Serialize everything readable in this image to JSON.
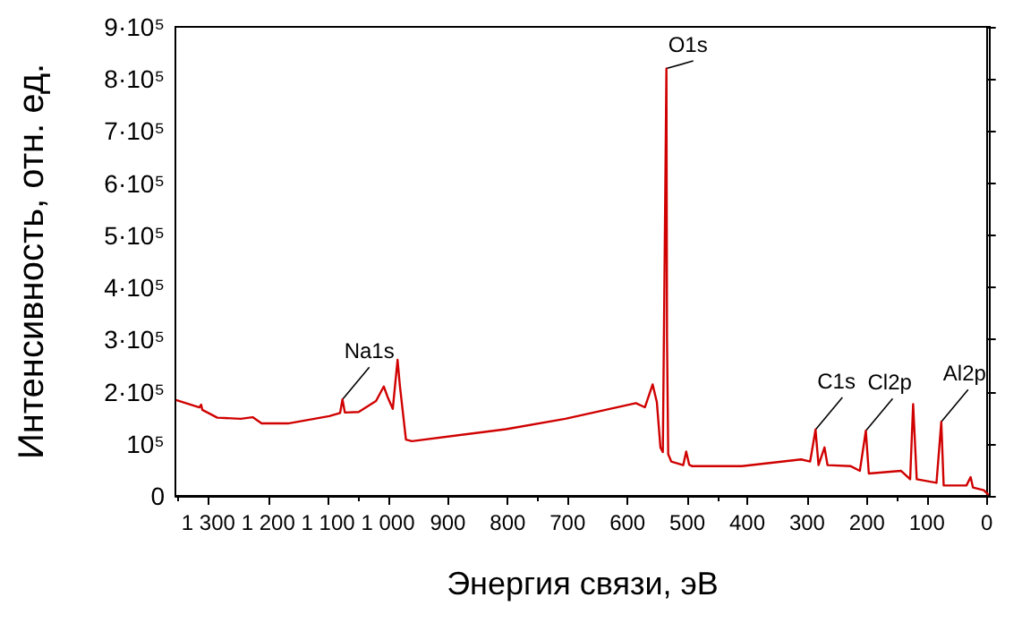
{
  "chart_data": {
    "type": "line",
    "xlabel": "Энергия связи, эВ",
    "ylabel": "Интенсивность, отн. ед.",
    "x": [
      1354,
      1315,
      1312,
      1310,
      1285,
      1246,
      1226,
      1211,
      1167,
      1098,
      1080,
      1076,
      1072,
      1049,
      1020,
      1007,
      1000,
      992,
      984,
      980,
      970,
      960,
      803,
      704,
      586,
      571,
      558,
      551,
      545,
      541,
      537,
      535,
      534,
      532,
      527,
      507,
      502,
      497,
      492,
      409,
      310,
      295,
      286,
      281,
      271,
      266,
      227,
      212,
      202,
      197,
      143,
      128,
      123,
      117,
      84,
      76,
      72,
      34,
      27,
      23,
      5,
      -3
    ],
    "series": [
      {
        "color": "#d00000",
        "values": [
          184000,
          170000,
          175000,
          165000,
          150000,
          148000,
          151000,
          139000,
          139000,
          153000,
          159000,
          185000,
          160000,
          161000,
          182000,
          210000,
          188000,
          167000,
          261000,
          210000,
          108000,
          105000,
          128000,
          148000,
          178000,
          170000,
          214000,
          180000,
          93000,
          84000,
          574000,
          820000,
          300000,
          80000,
          66000,
          59000,
          85000,
          60000,
          57000,
          57000,
          70000,
          66000,
          127000,
          59000,
          93000,
          59000,
          57000,
          48000,
          125000,
          43000,
          48000,
          32000,
          176000,
          32000,
          25000,
          142000,
          20000,
          20000,
          36000,
          16000,
          11000,
          2000
        ]
      }
    ],
    "xlim": [
      1355,
      -5
    ],
    "ylim": [
      0,
      900000
    ],
    "xticks": [
      {
        "value": 1300,
        "label": "1 300"
      },
      {
        "value": 1200,
        "label": "1 200"
      },
      {
        "value": 1100,
        "label": "1 100"
      },
      {
        "value": 1000,
        "label": "1 000"
      },
      900,
      800,
      700,
      600,
      500,
      400,
      300,
      200,
      100,
      0
    ],
    "yticks": [
      0,
      {
        "value": 100000,
        "label": "10⁵"
      },
      {
        "value": 200000,
        "label": "2·10⁵"
      },
      {
        "value": 300000,
        "label": "3·10⁵"
      },
      {
        "value": 400000,
        "label": "4·10⁵"
      },
      {
        "value": 500000,
        "label": "5·10⁵"
      },
      {
        "value": 600000,
        "label": "6·10⁵"
      },
      {
        "value": 700000,
        "label": "7·10⁵"
      },
      {
        "value": 800000,
        "label": "8·10⁵"
      },
      {
        "value": 900000,
        "label": "9·10⁵"
      }
    ],
    "annotations": [
      {
        "text": "Na1s",
        "x": 1076,
        "y": 185000
      },
      {
        "text": "O1s",
        "x": 535,
        "y": 820000
      },
      {
        "text": "C1s",
        "x": 286,
        "y": 127000
      },
      {
        "text": "Cl2p",
        "x": 202,
        "y": 125000
      },
      {
        "text": "Al2p",
        "x": 76,
        "y": 142000
      }
    ],
    "grid": false,
    "marker": "none",
    "line_style": "solid"
  }
}
